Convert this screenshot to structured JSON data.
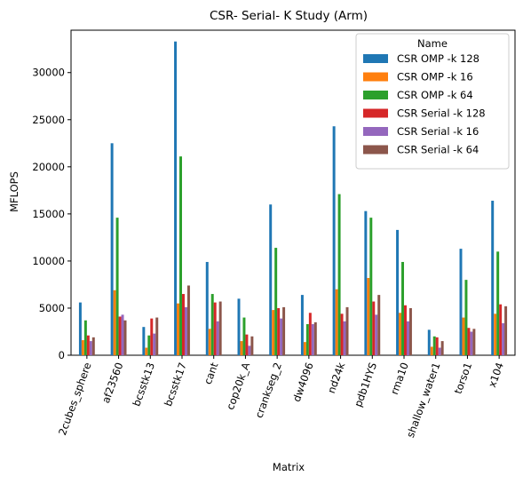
{
  "chart_data": {
    "type": "bar",
    "title": "CSR- Serial- K Study (Arm)",
    "xlabel": "Matrix",
    "ylabel": "MFLOPS",
    "ylim": [
      0,
      34500
    ],
    "yticks": [
      0,
      5000,
      10000,
      15000,
      20000,
      25000,
      30000
    ],
    "grid": false,
    "legend": {
      "title": "Name",
      "placement": "top-right"
    },
    "categories": [
      "2cubes_sphere",
      "af23560",
      "bcsstk13",
      "bcsstk17",
      "cant",
      "cop20k_A",
      "crankseg_2",
      "dw4096",
      "nd24k",
      "pdb1HYS",
      "rma10",
      "shallow_water1",
      "torso1",
      "x104"
    ],
    "series": [
      {
        "name": "CSR OMP -k 128",
        "color": "#1f77b4",
        "values": [
          5600,
          22500,
          3000,
          33300,
          9900,
          6000,
          16000,
          6400,
          24300,
          15300,
          13300,
          2700,
          11300,
          16400
        ]
      },
      {
        "name": "CSR OMP -k 16",
        "color": "#ff7f0e",
        "values": [
          1600,
          6900,
          800,
          5500,
          2800,
          1500,
          4800,
          1400,
          7000,
          8200,
          4500,
          900,
          4000,
          4400
        ]
      },
      {
        "name": "CSR OMP -k 64",
        "color": "#2ca02c",
        "values": [
          3700,
          14600,
          2100,
          21100,
          6500,
          4000,
          11400,
          3300,
          17100,
          14600,
          9900,
          2000,
          8000,
          11000
        ]
      },
      {
        "name": "CSR Serial -k 128",
        "color": "#d62728",
        "values": [
          2100,
          4100,
          3900,
          6500,
          5600,
          2200,
          5000,
          4500,
          4400,
          5700,
          5300,
          1900,
          2900,
          5400
        ]
      },
      {
        "name": "CSR Serial -k 16",
        "color": "#9467bd",
        "values": [
          1500,
          4300,
          2300,
          5100,
          3600,
          1000,
          3900,
          3300,
          3600,
          4300,
          3600,
          800,
          2500,
          3400
        ]
      },
      {
        "name": "CSR Serial -k 64",
        "color": "#8c564b",
        "values": [
          1900,
          3700,
          4000,
          7400,
          5700,
          2000,
          5100,
          3500,
          5100,
          6400,
          5000,
          1500,
          2800,
          5200
        ]
      }
    ]
  }
}
